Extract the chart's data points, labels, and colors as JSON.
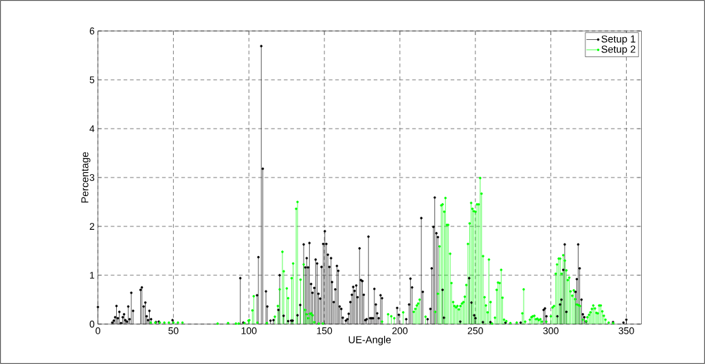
{
  "chart_data": {
    "type": "lollipop",
    "xlabel": "UE-Angle",
    "ylabel": "Percentage",
    "xlim": [
      0,
      360
    ],
    "ylim": [
      0,
      6
    ],
    "xticks": [
      0,
      50,
      100,
      150,
      200,
      250,
      300,
      350
    ],
    "yticks": [
      0,
      1,
      2,
      3,
      4,
      5,
      6
    ],
    "grid": true,
    "legend": "top right",
    "marker": "circle",
    "line_style": "solid",
    "series": [
      {
        "name": "Setup 1",
        "color": "#000000",
        "x": [
          0,
          9.5,
          10.5,
          11.4,
          12.3,
          13.2,
          14.2,
          15.3,
          16.4,
          17.3,
          18.2,
          19.2,
          20.1,
          21.0,
          22.1,
          23.3,
          28.2,
          29.1,
          30.3,
          31.4,
          32.3,
          33.2,
          34.1,
          35.2,
          38.4,
          40.3,
          49.4,
          94.3,
          96.3,
          105.4,
          106.3,
          108.2,
          109.2,
          111.3,
          112.2,
          114.3,
          116.3,
          119.5,
          120.4,
          123.0,
          126.0,
          128.0,
          129.0,
          132.2,
          134.0,
          136.3,
          137.4,
          138.3,
          139.2,
          140.1,
          141.2,
          142.1,
          143.3,
          144.2,
          145.2,
          146.1,
          147.2,
          148.1,
          149.2,
          150.3,
          151.3,
          152.3,
          153.3,
          154.4,
          155.1,
          156.2,
          157.2,
          158.3,
          159.2,
          160.1,
          161.2,
          162.2,
          164.2,
          165.2,
          166.1,
          167.2,
          168.2,
          169.1,
          170.0,
          171.1,
          172.0,
          173.3,
          174.2,
          175.2,
          176.1,
          177.1,
          178.0,
          179.2,
          180.3,
          181.2,
          182.2,
          183.1,
          184.1,
          185.0,
          186.0,
          187.2,
          188.2,
          198.2,
          199.3,
          204.2,
          206.1,
          207.0,
          208.1,
          214.2,
          215.2,
          218.4,
          220.2,
          221.1,
          222.2,
          223.1,
          224.2,
          225.2,
          228.3,
          229.2,
          240.0,
          245.9,
          247.4,
          249.2,
          250.1,
          255.0,
          260.0,
          270.0,
          280.0,
          295.2,
          296.1,
          297.1,
          304.3,
          306.1,
          307.0,
          308.2,
          309.2,
          310.3,
          316.3,
          317.2,
          318.1,
          319.1,
          320.3,
          321.2,
          322.2,
          323.3,
          341.2,
          348.1,
          350.0
        ],
        "values": [
          0.35,
          0.03,
          0.07,
          0.14,
          0.37,
          0.12,
          0.25,
          0.02,
          0.14,
          0.2,
          0.08,
          0.05,
          0.36,
          0.1,
          0.64,
          0.27,
          0.7,
          0.75,
          0.36,
          0.44,
          0.16,
          0.08,
          0.27,
          0.1,
          0.04,
          0.05,
          0.08,
          0.94,
          0.03,
          0.59,
          1.37,
          5.69,
          3.18,
          0.67,
          0.36,
          0.07,
          0.08,
          0.29,
          1.0,
          0.17,
          0.06,
          0.07,
          0.07,
          0.18,
          0.39,
          1.63,
          1.16,
          1.35,
          1.16,
          1.66,
          0.82,
          0.64,
          0.74,
          1.32,
          1.24,
          0.62,
          0.52,
          1.17,
          1.64,
          1.9,
          1.64,
          1.42,
          1.17,
          1.35,
          0.86,
          0.45,
          0.71,
          1.19,
          1.09,
          0.36,
          0.31,
          0.13,
          0.07,
          0.1,
          0.21,
          0.45,
          0.6,
          0.76,
          0.68,
          0.79,
          0.55,
          1.55,
          0.9,
          0.88,
          0.6,
          0.08,
          0.1,
          1.79,
          0.12,
          0.12,
          0.12,
          0.72,
          0.4,
          0.22,
          0.12,
          0.59,
          0.53,
          0.33,
          0.19,
          0.1,
          0.4,
          0.93,
          0.75,
          2.17,
          0.66,
          0.1,
          0.31,
          1.14,
          1.99,
          2.59,
          1.86,
          1.78,
          0.7,
          0.13,
          0.05,
          0.94,
          0.44,
          0.18,
          0.12,
          0.04,
          0.04,
          0.03,
          0.03,
          0.29,
          0.32,
          0.16,
          0.16,
          0.4,
          0.5,
          1.11,
          1.63,
          0.25,
          0.66,
          0.92,
          1.63,
          1.14,
          0.5,
          0.2,
          0.14,
          0.05,
          0.04,
          0.03,
          0.09
        ]
      },
      {
        "name": "Setup 2",
        "color": "#00ff00",
        "x": [
          35,
          38,
          41,
          44,
          47,
          50,
          53,
          56,
          79.3,
          86.2,
          91.4,
          93.2,
          97.1,
          99.7,
          100.3,
          102.3,
          103.2,
          105.6,
          111.9,
          117.2,
          119.2,
          120.4,
          122.2,
          123.1,
          125.1,
          126.0,
          128.3,
          129.3,
          131.3,
          132.2,
          134.2,
          136.3,
          137.2,
          138.3,
          139.2,
          140.4,
          141.3,
          142.2,
          143.3,
          146.3,
          149.0,
          188.2,
          192.2,
          194.3,
          196.3,
          202.2,
          209.2,
          210.2,
          211.2,
          212.1,
          213.1,
          217.0,
          223.4,
          225.2,
          226.3,
          227.4,
          228.3,
          229.4,
          230.2,
          231.1,
          232.0,
          233.3,
          234.2,
          235.3,
          236.2,
          237.2,
          238.1,
          239.1,
          240.1,
          241.1,
          242.1,
          243.0,
          244.0,
          245.1,
          246.2,
          247.2,
          248.1,
          249.0,
          250.1,
          251.1,
          252.2,
          253.2,
          254.1,
          255.1,
          256.1,
          257.0,
          258.1,
          259.0,
          260.1,
          261.1,
          263.0,
          264.1,
          265.0,
          266.1,
          267.1,
          268.0,
          269.0,
          270.5,
          273.2,
          277.4,
          281.1,
          282.0,
          283.0,
          286.1,
          287.1,
          288.0,
          289.1,
          290.1,
          291.1,
          292.0,
          293.1,
          294.1,
          297.0,
          300.0,
          301.1,
          302.1,
          303.2,
          304.1,
          305.2,
          306.2,
          307.1,
          308.2,
          309.3,
          310.3,
          311.2,
          312.2,
          313.1,
          314.2,
          315.2,
          316.1,
          317.2,
          318.2,
          319.3,
          321.2,
          323.3,
          324.2,
          325.3,
          326.2,
          327.2,
          328.1,
          329.2,
          330.2,
          331.1,
          332.0,
          333.1,
          334.1,
          335.1,
          336.2,
          338.3,
          341.3
        ],
        "values": [
          0.03,
          0.03,
          0.03,
          0.03,
          0.03,
          0.03,
          0.03,
          0.03,
          0.01,
          0.02,
          0.01,
          0.01,
          0.02,
          0.07,
          0.08,
          0.28,
          0.57,
          0.03,
          0.02,
          0.15,
          0.37,
          0.71,
          1.48,
          1.08,
          0.73,
          0.53,
          0.94,
          1.24,
          2.36,
          2.5,
          0.91,
          1.22,
          0.29,
          0.2,
          0.12,
          0.21,
          0.22,
          0.18,
          0.04,
          0.01,
          0.01,
          0.05,
          0.2,
          0.16,
          0.12,
          0.24,
          0.25,
          0.31,
          0.38,
          0.42,
          0.5,
          0.15,
          0.25,
          0.62,
          1.59,
          2.43,
          2.45,
          2.3,
          2.58,
          2.03,
          2.03,
          1.44,
          0.84,
          0.45,
          0.37,
          0.34,
          0.37,
          0.3,
          0.37,
          0.42,
          0.45,
          0.56,
          0.8,
          1.64,
          2.06,
          2.48,
          2.36,
          2.31,
          2.3,
          2.45,
          2.45,
          2.99,
          2.67,
          1.39,
          0.55,
          0.38,
          0.24,
          1.32,
          0.45,
          0.01,
          0.13,
          0.7,
          0.85,
          0.84,
          1.11,
          0.54,
          0.09,
          0.06,
          0.02,
          0.03,
          0.22,
          0.71,
          0.05,
          0.09,
          0.14,
          0.16,
          0.17,
          0.1,
          0.11,
          0.08,
          0.1,
          0.05,
          0.05,
          0.16,
          0.34,
          0.37,
          1.03,
          1.22,
          1.34,
          1.34,
          1.03,
          1.41,
          1.3,
          1.1,
          0.9,
          0.95,
          0.67,
          0.58,
          0.69,
          0.51,
          0.4,
          0.39,
          0.37,
          0.09,
          0.06,
          0.14,
          0.19,
          0.24,
          0.31,
          0.38,
          0.32,
          0.23,
          0.22,
          0.38,
          0.38,
          0.26,
          0.17,
          0.09,
          0.03,
          0.02
        ]
      }
    ]
  }
}
